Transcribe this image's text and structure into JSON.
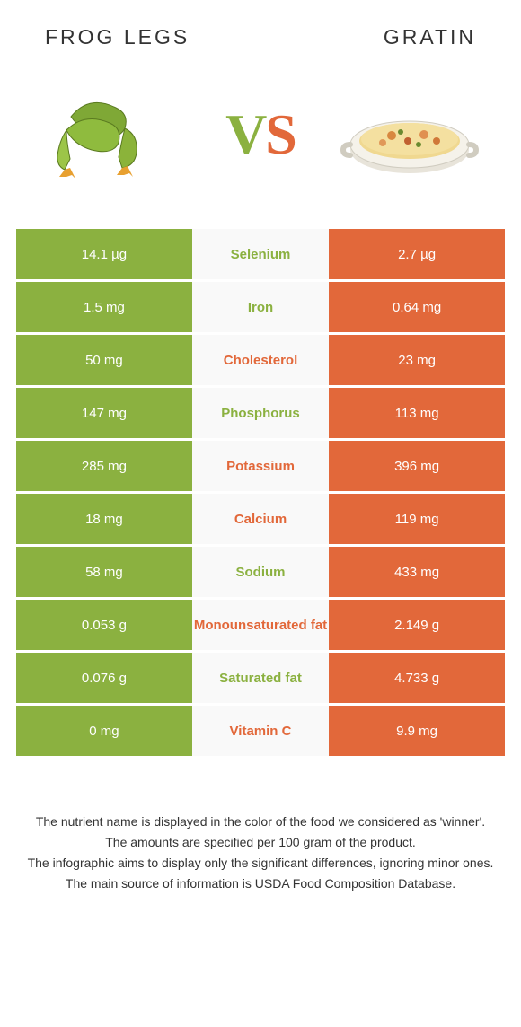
{
  "titles": {
    "left": "FROG LEGS",
    "right": "GRATIN"
  },
  "vs": {
    "v": "V",
    "s": "S"
  },
  "colors": {
    "green": "#8bb140",
    "orange": "#e2683a",
    "midBg": "#f9f9f9",
    "text": "#333333"
  },
  "rows": [
    {
      "left": "14.1 µg",
      "name": "Selenium",
      "right": "2.7 µg",
      "winner": "left"
    },
    {
      "left": "1.5 mg",
      "name": "Iron",
      "right": "0.64 mg",
      "winner": "left"
    },
    {
      "left": "50 mg",
      "name": "Cholesterol",
      "right": "23 mg",
      "winner": "right"
    },
    {
      "left": "147 mg",
      "name": "Phosphorus",
      "right": "113 mg",
      "winner": "left"
    },
    {
      "left": "285 mg",
      "name": "Potassium",
      "right": "396 mg",
      "winner": "right"
    },
    {
      "left": "18 mg",
      "name": "Calcium",
      "right": "119 mg",
      "winner": "right"
    },
    {
      "left": "58 mg",
      "name": "Sodium",
      "right": "433 mg",
      "winner": "left"
    },
    {
      "left": "0.053 g",
      "name": "Monounsaturated fat",
      "right": "2.149 g",
      "winner": "right"
    },
    {
      "left": "0.076 g",
      "name": "Saturated fat",
      "right": "4.733 g",
      "winner": "left"
    },
    {
      "left": "0 mg",
      "name": "Vitamin C",
      "right": "9.9 mg",
      "winner": "right"
    }
  ],
  "footer": [
    "The nutrient name is displayed in the color of the food we considered as 'winner'.",
    "The amounts are specified per 100 gram of the product.",
    "The infographic aims to display only the significant differences, ignoring minor ones.",
    "The main source of information is USDA Food Composition Database."
  ]
}
